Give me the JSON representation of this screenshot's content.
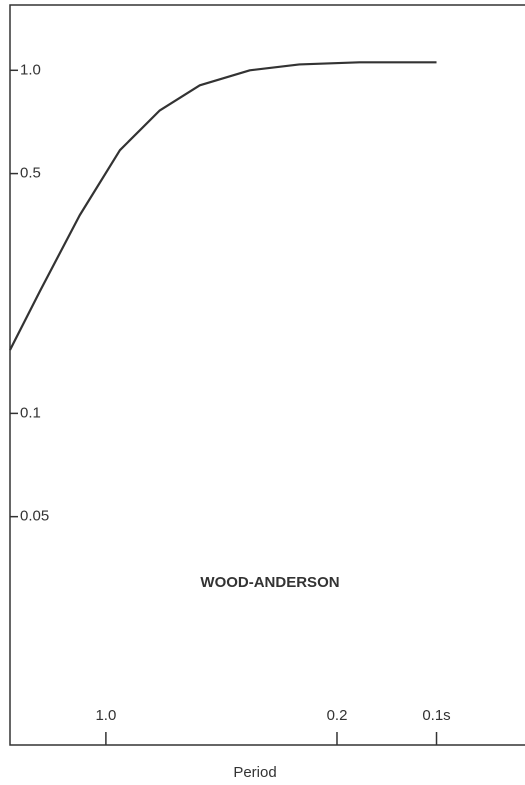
{
  "chart_data": {
    "type": "line",
    "annotation": "WOOD-ANDERSON",
    "x_label": "Period",
    "x": [
      1.95,
      1.58,
      1.2,
      0.907,
      0.687,
      0.52,
      0.367,
      0.26,
      0.171,
      0.1
    ],
    "series": [
      {
        "name": null,
        "color": "#333333",
        "values": [
          0.153,
          0.228,
          0.378,
          0.585,
          0.764,
          0.904,
          1.0,
          1.04,
          1.055,
          1.055
        ]
      }
    ],
    "xlim": [
      1.95,
      0.054
    ],
    "ylim": [
      0.0108,
      1.55
    ],
    "xticks": [
      {
        "value": 1,
        "label": "1.0"
      },
      0.2,
      {
        "value": 0.1,
        "label": "0.1s"
      }
    ],
    "yticks": [
      {
        "value": 1,
        "label": "1.0"
      },
      0.5,
      0.1,
      0.05
    ],
    "xscale": "log",
    "yscale": "log",
    "grid": false
  }
}
